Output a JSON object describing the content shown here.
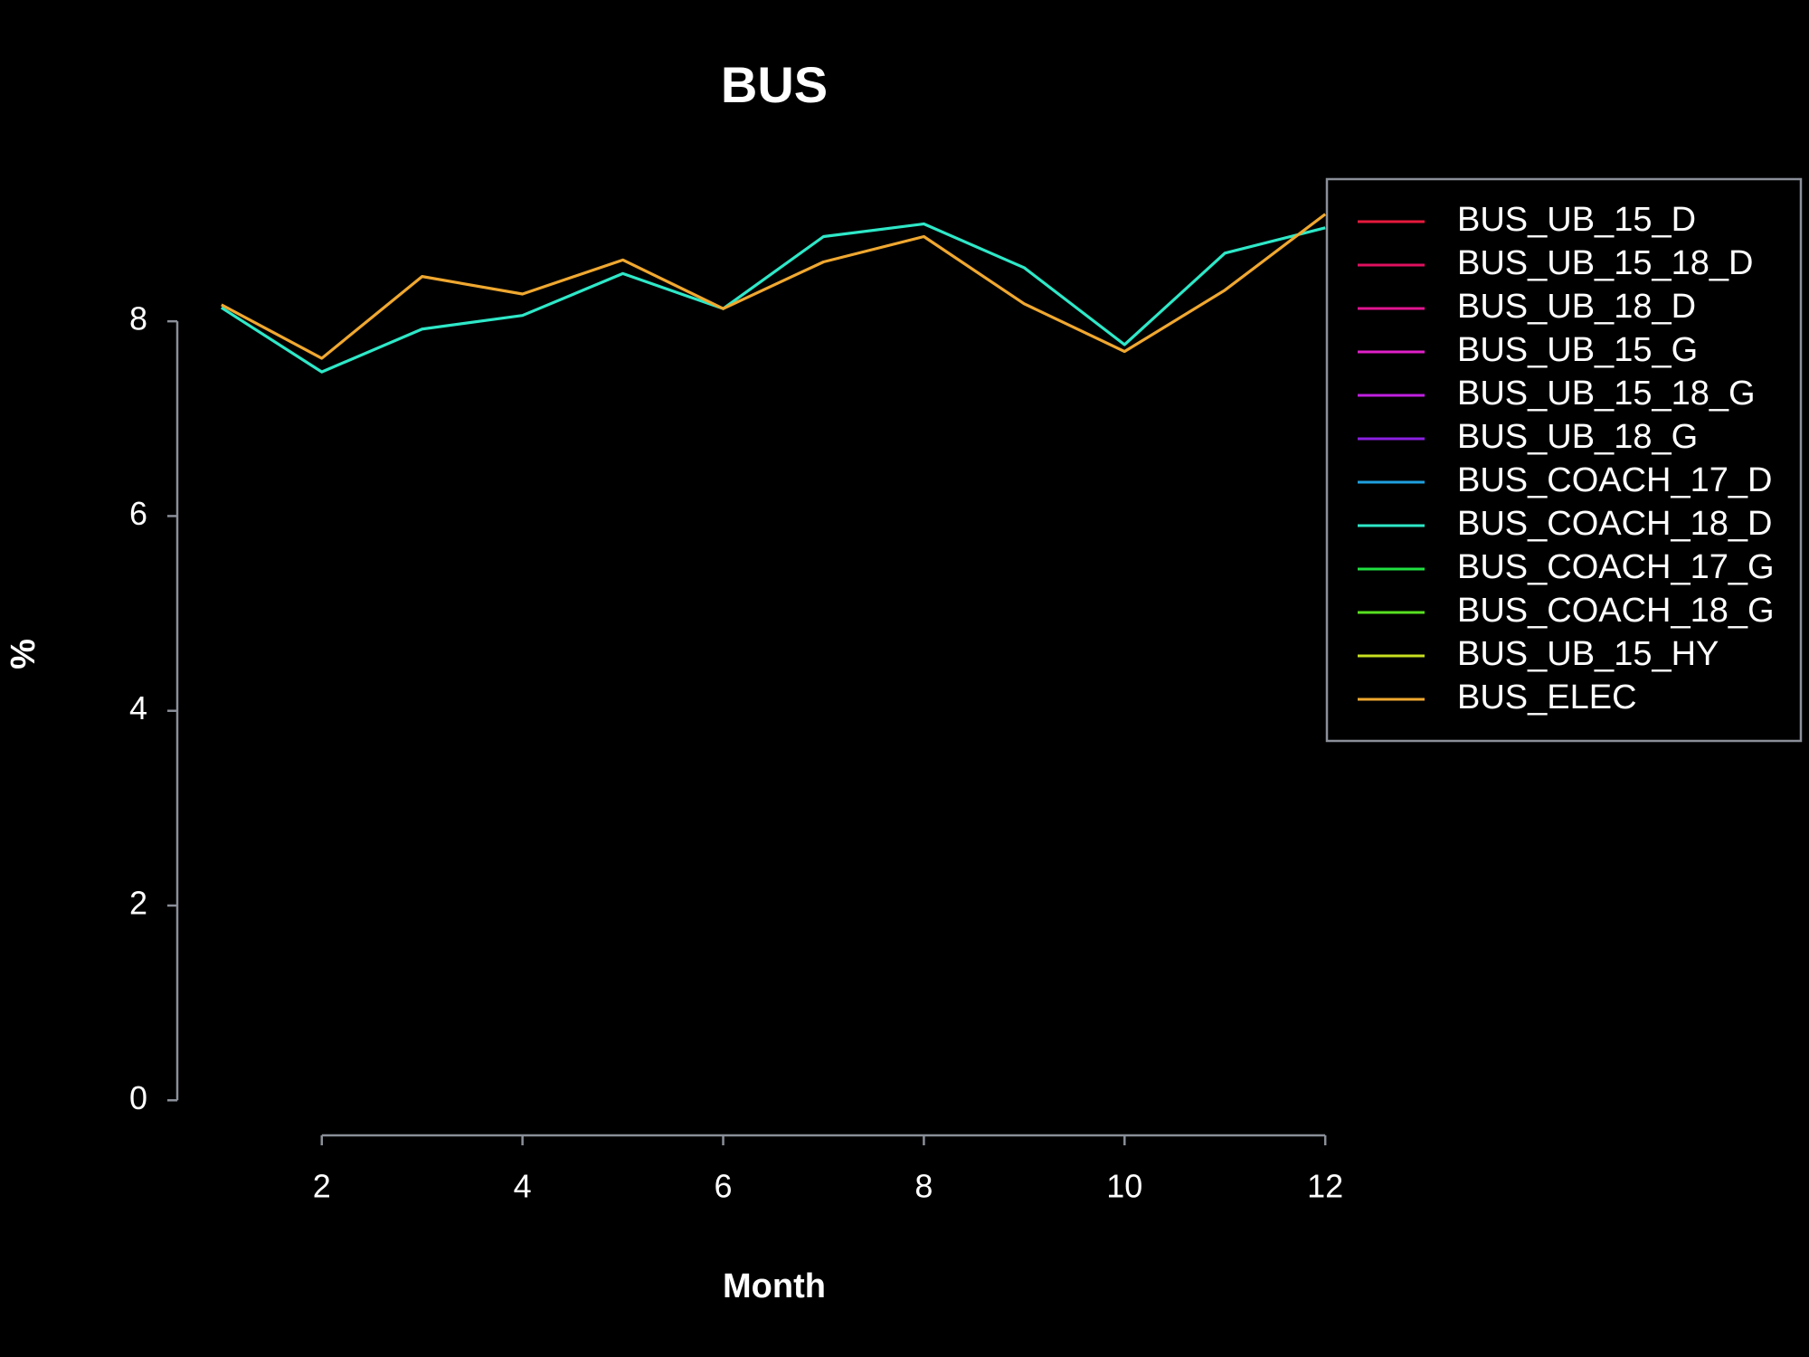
{
  "chart_data": {
    "type": "line",
    "title": "BUS",
    "x_label": "Month",
    "y_label": "%",
    "x": [
      1,
      2,
      3,
      4,
      5,
      6,
      7,
      8,
      9,
      10,
      11,
      12
    ],
    "xlim": [
      0.56,
      12.44
    ],
    "xticks": [
      2,
      4,
      6,
      8,
      10,
      12
    ],
    "ylim": [
      -0.36,
      9.46
    ],
    "yticks": [
      0,
      2,
      4,
      6,
      8
    ],
    "grid": false,
    "legend": "topright",
    "series": [
      {
        "name": "BUS_UB_15_D",
        "color": "#e6193c",
        "values": [
          null,
          null,
          null,
          null,
          null,
          null,
          null,
          null,
          null,
          null,
          null,
          null
        ]
      },
      {
        "name": "BUS_UB_15_18_D",
        "color": "#e0115f",
        "values": [
          null,
          null,
          null,
          null,
          null,
          null,
          null,
          null,
          null,
          null,
          null,
          null
        ]
      },
      {
        "name": "BUS_UB_18_D",
        "color": "#e01590",
        "values": [
          null,
          null,
          null,
          null,
          null,
          null,
          null,
          null,
          null,
          null,
          null,
          null
        ]
      },
      {
        "name": "BUS_UB_15_G",
        "color": "#e020c8",
        "values": [
          null,
          null,
          null,
          null,
          null,
          null,
          null,
          null,
          null,
          null,
          null,
          null
        ]
      },
      {
        "name": "BUS_UB_15_18_G",
        "color": "#c020e0",
        "values": [
          null,
          null,
          null,
          null,
          null,
          null,
          null,
          null,
          null,
          null,
          null,
          null
        ]
      },
      {
        "name": "BUS_UB_18_G",
        "color": "#8a20e0",
        "values": [
          null,
          null,
          null,
          null,
          null,
          null,
          null,
          null,
          null,
          null,
          null,
          null
        ]
      },
      {
        "name": "BUS_COACH_17_D",
        "color": "#1ea0e0",
        "values": [
          null,
          null,
          null,
          null,
          null,
          null,
          null,
          null,
          null,
          null,
          null,
          null
        ]
      },
      {
        "name": "BUS_COACH_18_D",
        "color": "#2ee8c8",
        "values": [
          8.14,
          7.48,
          7.92,
          8.06,
          8.49,
          8.13,
          8.87,
          9.0,
          8.55,
          7.76,
          8.7,
          8.96
        ]
      },
      {
        "name": "BUS_COACH_17_G",
        "color": "#20e040",
        "values": [
          null,
          null,
          null,
          null,
          null,
          null,
          null,
          null,
          null,
          null,
          null,
          null
        ]
      },
      {
        "name": "BUS_COACH_18_G",
        "color": "#58e020",
        "values": [
          null,
          null,
          null,
          null,
          null,
          null,
          null,
          null,
          null,
          null,
          null,
          null
        ]
      },
      {
        "name": "BUS_UB_15_HY",
        "color": "#c8e020",
        "values": [
          null,
          null,
          null,
          null,
          null,
          null,
          null,
          null,
          null,
          null,
          null,
          null
        ]
      },
      {
        "name": "BUS_ELEC",
        "color": "#f0a830",
        "values": [
          8.17,
          7.62,
          8.46,
          8.28,
          8.63,
          8.13,
          8.61,
          8.87,
          8.18,
          7.69,
          8.32,
          9.1
        ]
      }
    ]
  }
}
